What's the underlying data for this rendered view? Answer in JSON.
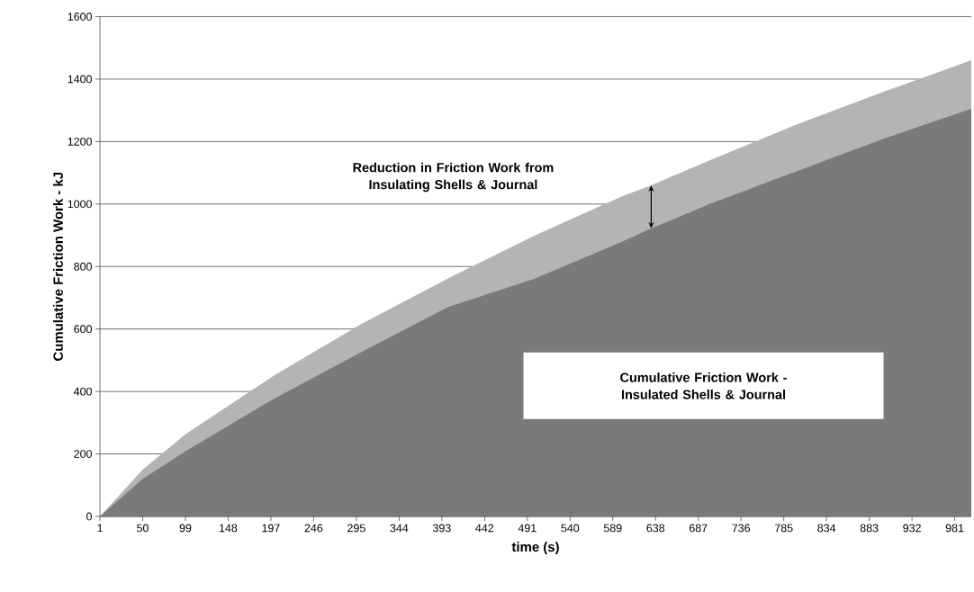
{
  "chart_data": {
    "type": "area",
    "xlabel": "time (s)",
    "ylabel": "Cumulative Friction Work - kJ",
    "x": [
      1,
      50,
      100,
      200,
      300,
      400,
      500,
      600,
      633,
      700,
      800,
      900,
      1000
    ],
    "series": [
      {
        "color": "#b4b4b4",
        "values": [
          0,
          150,
          265,
          450,
          615,
          762,
          900,
          1025,
          1060,
          1140,
          1255,
          1360,
          1460
        ]
      },
      {
        "color": "#7a7a7a",
        "values": [
          0,
          120,
          210,
          376,
          525,
          670,
          762,
          880,
          922,
          1000,
          1105,
          1210,
          1305
        ]
      }
    ],
    "annotations": [
      "Reduction in Friction Work from Insulating Shells & Journal",
      "Cumulative Friction Work - Insulated Shells & Journal"
    ],
    "xlim": [
      1,
      1000
    ],
    "xticks": [
      1,
      50,
      99,
      148,
      197,
      246,
      295,
      344,
      393,
      442,
      491,
      540,
      589,
      638,
      687,
      736,
      785,
      834,
      883,
      932,
      981
    ],
    "ylim": [
      0,
      1600
    ],
    "yticks": [
      0,
      200,
      400,
      600,
      800,
      1000,
      1200,
      1400,
      1600
    ],
    "grid": "y"
  }
}
